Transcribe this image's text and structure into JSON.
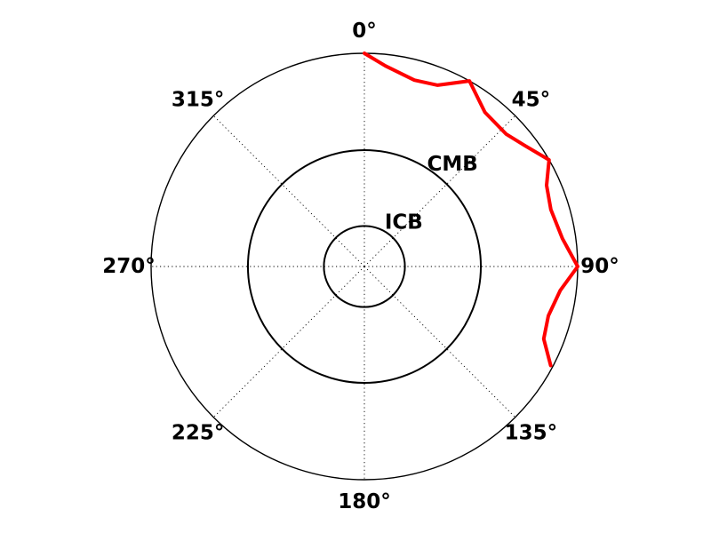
{
  "diagram": {
    "angular_ticks": [
      {
        "angle_deg": 0,
        "label": "0°"
      },
      {
        "angle_deg": 45,
        "label": "45°"
      },
      {
        "angle_deg": 90,
        "label": "90°"
      },
      {
        "angle_deg": 135,
        "label": "135°"
      },
      {
        "angle_deg": 180,
        "label": "180°"
      },
      {
        "angle_deg": 225,
        "label": "225°"
      },
      {
        "angle_deg": 270,
        "label": "270°"
      },
      {
        "angle_deg": 315,
        "label": "315°"
      }
    ],
    "angular_direction": "clockwise",
    "zero_location": "top",
    "gridlines": "dotted",
    "boundaries": [
      {
        "label": "CMB",
        "radius_fraction": 0.546
      },
      {
        "label": "ICB",
        "radius_fraction": 0.19
      }
    ],
    "ray_path": {
      "color": "#ff0000",
      "points": [
        {
          "angle_deg": 0,
          "r": 1.0
        },
        {
          "angle_deg": 6,
          "r": 0.946
        },
        {
          "angle_deg": 15,
          "r": 0.905
        },
        {
          "angle_deg": 22,
          "r": 0.917
        },
        {
          "angle_deg": 29.5,
          "r": 1.0
        },
        {
          "angle_deg": 38,
          "r": 0.918
        },
        {
          "angle_deg": 47,
          "r": 0.91
        },
        {
          "angle_deg": 53,
          "r": 0.942
        },
        {
          "angle_deg": 60,
          "r": 1.0
        },
        {
          "angle_deg": 66,
          "r": 0.935
        },
        {
          "angle_deg": 73,
          "r": 0.914
        },
        {
          "angle_deg": 82,
          "r": 0.938
        },
        {
          "angle_deg": 90,
          "r": 1.0
        },
        {
          "angle_deg": 97,
          "r": 0.925
        },
        {
          "angle_deg": 105,
          "r": 0.893
        },
        {
          "angle_deg": 112,
          "r": 0.907
        },
        {
          "angle_deg": 118,
          "r": 0.989
        }
      ]
    }
  }
}
